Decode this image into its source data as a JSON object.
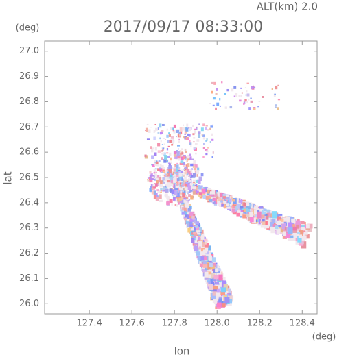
{
  "chart_data": {
    "type": "radar-field",
    "altitude_label": "ALT(km) 2.0",
    "title": "2017/09/17 08:33:00",
    "y_unit": "(deg)",
    "x_unit": "(deg)",
    "xlabel": "lon",
    "ylabel": "lat",
    "xlim": [
      127.19,
      128.47
    ],
    "xticks": [
      127.4,
      127.6,
      127.8,
      {
        "value": 128.0,
        "label": "128.0"
      },
      128.2,
      128.4
    ],
    "ylim": [
      25.96,
      27.04
    ],
    "yticks": [
      {
        "value": 26.0,
        "label": "26.0"
      },
      26.1,
      26.2,
      26.3,
      26.4,
      26.5,
      26.6,
      26.7,
      26.8,
      26.9,
      {
        "value": 27.0,
        "label": "27.0"
      }
    ]
  }
}
